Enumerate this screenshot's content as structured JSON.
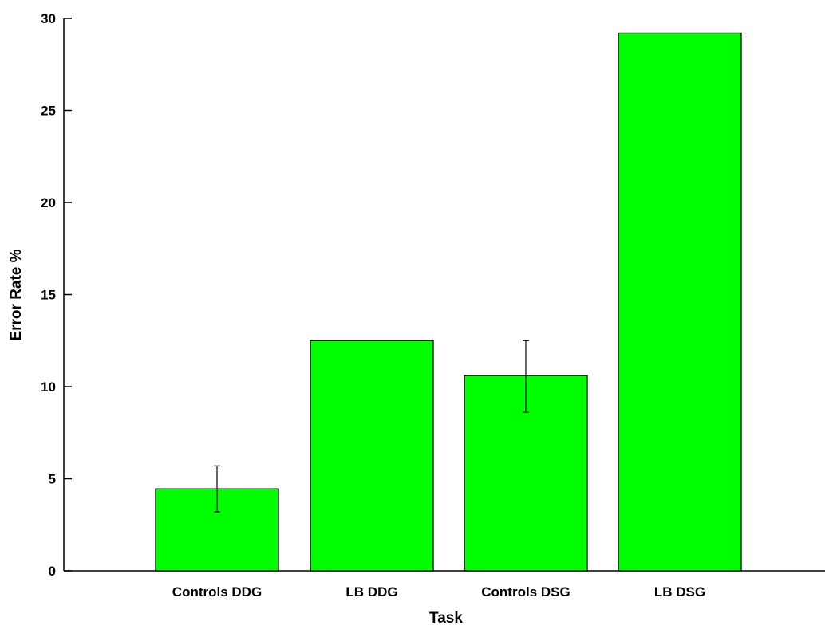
{
  "chart_data": {
    "type": "bar",
    "title": "",
    "xlabel": "Task",
    "ylabel": "Error Rate %",
    "categories": [
      "Controls DDG",
      "LB DDG",
      "Controls DSG",
      "LB DSG"
    ],
    "values": [
      4.45,
      12.5,
      10.6,
      29.2
    ],
    "error_low": [
      3.2,
      null,
      8.6,
      null
    ],
    "error_high": [
      5.7,
      null,
      12.5,
      null
    ],
    "ylim": [
      0,
      30
    ],
    "yticks": [
      0,
      5,
      10,
      15,
      20,
      25,
      30
    ],
    "grid": false,
    "legend": "none",
    "bar_color": "#00ff00"
  }
}
